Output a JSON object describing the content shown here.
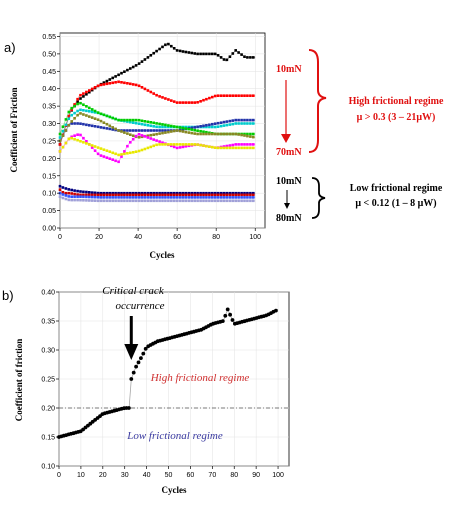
{
  "chart_data": [
    {
      "type": "scatter",
      "panel_label": "a)",
      "xlabel": "Cycles",
      "ylabel": "Coefficient of Friction",
      "xlim": [
        0,
        105
      ],
      "ylim": [
        0,
        0.56
      ],
      "xticks": [
        "0",
        "20",
        "40",
        "60",
        "80",
        "100"
      ],
      "yticks": [
        "0.00",
        "0.05",
        "0.10",
        "0.15",
        "0.20",
        "0.25",
        "0.30",
        "0.35",
        "0.40",
        "0.45",
        "0.50",
        "0.55"
      ],
      "annotations": {
        "high_top_load": "10mN",
        "high_bottom_load": "70mN",
        "high_regime_title": "High frictional regime",
        "high_regime_detail": "μ > 0.3 (3 – 21μW)",
        "low_top_load": "10mN",
        "low_bottom_load": "80mN",
        "low_regime_title": "Low frictional regime",
        "low_regime_detail": "μ < 0.12 (1 – 8 μW)"
      },
      "series": [
        {
          "color": "#000000",
          "x": [
            0,
            5,
            10,
            20,
            30,
            40,
            50,
            55,
            60,
            70,
            80,
            85,
            90,
            95,
            100
          ],
          "y": [
            0.24,
            0.33,
            0.37,
            0.41,
            0.44,
            0.47,
            0.51,
            0.53,
            0.51,
            0.5,
            0.5,
            0.48,
            0.51,
            0.49,
            0.49
          ]
        },
        {
          "color": "#ff0000",
          "x": [
            0,
            5,
            10,
            20,
            30,
            40,
            50,
            60,
            70,
            80,
            90,
            100
          ],
          "y": [
            0.24,
            0.33,
            0.38,
            0.41,
            0.42,
            0.41,
            0.38,
            0.36,
            0.36,
            0.38,
            0.38,
            0.38
          ]
        },
        {
          "color": "#00cccc",
          "x": [
            0,
            5,
            10,
            20,
            30,
            40,
            50,
            60,
            70,
            80,
            90,
            100
          ],
          "y": [
            0.26,
            0.32,
            0.34,
            0.33,
            0.31,
            0.3,
            0.29,
            0.29,
            0.29,
            0.29,
            0.3,
            0.3
          ]
        },
        {
          "color": "#2233aa",
          "x": [
            0,
            5,
            10,
            20,
            30,
            40,
            50,
            60,
            70,
            80,
            90,
            100
          ],
          "y": [
            0.25,
            0.3,
            0.3,
            0.29,
            0.28,
            0.28,
            0.28,
            0.28,
            0.29,
            0.3,
            0.31,
            0.31
          ]
        },
        {
          "color": "#00cc00",
          "x": [
            0,
            5,
            10,
            20,
            30,
            40,
            50,
            60,
            70,
            80,
            90,
            100
          ],
          "y": [
            0.27,
            0.34,
            0.36,
            0.33,
            0.31,
            0.31,
            0.3,
            0.29,
            0.28,
            0.27,
            0.27,
            0.27
          ]
        },
        {
          "color": "#888822",
          "x": [
            0,
            5,
            10,
            20,
            30,
            40,
            50,
            60,
            70,
            80,
            90,
            100
          ],
          "y": [
            0.25,
            0.3,
            0.33,
            0.31,
            0.28,
            0.26,
            0.27,
            0.28,
            0.27,
            0.27,
            0.27,
            0.26
          ]
        },
        {
          "color": "#ff00ff",
          "x": [
            0,
            5,
            10,
            15,
            20,
            25,
            30,
            35,
            40,
            50,
            60,
            70,
            80,
            90,
            100
          ],
          "y": [
            0.22,
            0.26,
            0.27,
            0.24,
            0.21,
            0.2,
            0.19,
            0.24,
            0.27,
            0.25,
            0.23,
            0.24,
            0.23,
            0.24,
            0.24
          ]
        },
        {
          "color": "#e8e800",
          "x": [
            0,
            5,
            10,
            20,
            30,
            40,
            50,
            60,
            70,
            80,
            90,
            100
          ],
          "y": [
            0.22,
            0.26,
            0.25,
            0.23,
            0.21,
            0.22,
            0.24,
            0.24,
            0.24,
            0.23,
            0.23,
            0.23
          ]
        },
        {
          "color": "#000080",
          "x": [
            0,
            2,
            5,
            10,
            20,
            40,
            60,
            80,
            100
          ],
          "y": [
            0.12,
            0.115,
            0.11,
            0.105,
            0.1,
            0.1,
            0.1,
            0.1,
            0.1
          ]
        },
        {
          "color": "#cc0000",
          "x": [
            0,
            2,
            5,
            10,
            20,
            40,
            60,
            80,
            100
          ],
          "y": [
            0.11,
            0.1,
            0.1,
            0.095,
            0.095,
            0.095,
            0.095,
            0.095,
            0.095
          ]
        },
        {
          "color": "#3355ff",
          "x": [
            0,
            2,
            5,
            10,
            20,
            40,
            60,
            80,
            100
          ],
          "y": [
            0.1,
            0.095,
            0.09,
            0.09,
            0.088,
            0.088,
            0.088,
            0.088,
            0.088
          ]
        },
        {
          "color": "#a0a0d8",
          "x": [
            0,
            2,
            5,
            10,
            20,
            40,
            60,
            80,
            100
          ],
          "y": [
            0.09,
            0.085,
            0.08,
            0.08,
            0.078,
            0.078,
            0.078,
            0.078,
            0.078
          ]
        }
      ]
    },
    {
      "type": "scatter",
      "panel_label": "b)",
      "xlabel": "Cycles",
      "ylabel": "Coefficient of friction",
      "xlim": [
        0,
        105
      ],
      "ylim": [
        0.1,
        0.4
      ],
      "xticks": [
        "0",
        "10",
        "20",
        "30",
        "40",
        "50",
        "60",
        "70",
        "80",
        "90",
        "100"
      ],
      "yticks": [
        "0.10",
        "0.15",
        "0.20",
        "0.25",
        "0.30",
        "0.35",
        "0.40"
      ],
      "threshold": 0.2,
      "annotations": {
        "crack_line1": "Critical crack",
        "crack_line2": "occurrence",
        "crack_x": 33,
        "high_label": "High frictional regime",
        "low_label": "Low frictional regime",
        "high_color": "#d03030",
        "low_color": "#3a3aa0"
      },
      "series": [
        {
          "color": "#000000",
          "x": [
            0,
            5,
            10,
            15,
            20,
            25,
            30,
            32,
            33,
            35,
            38,
            40,
            45,
            50,
            55,
            60,
            65,
            70,
            75,
            77,
            80,
            85,
            90,
            95,
            100
          ],
          "y": [
            0.15,
            0.155,
            0.16,
            0.175,
            0.19,
            0.195,
            0.2,
            0.2,
            0.25,
            0.27,
            0.29,
            0.305,
            0.315,
            0.32,
            0.325,
            0.33,
            0.335,
            0.345,
            0.35,
            0.37,
            0.345,
            0.35,
            0.355,
            0.36,
            0.37
          ]
        }
      ]
    }
  ]
}
